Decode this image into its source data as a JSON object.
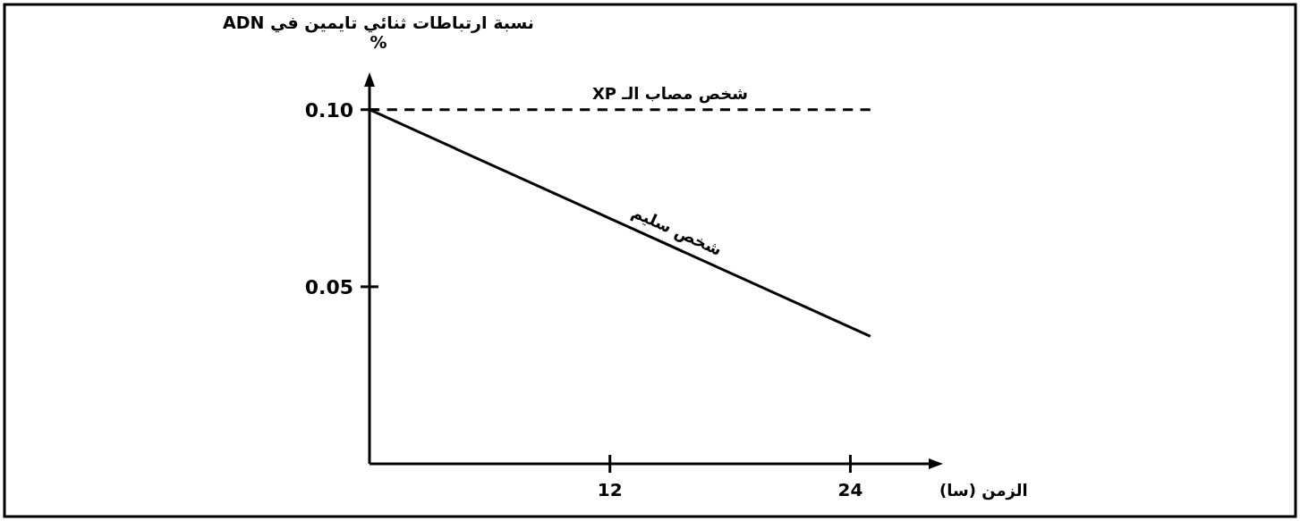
{
  "chart_data": {
    "type": "line",
    "ylabel": "نسبة ارتباطات ثنائي تايمين في ADN\n%",
    "xlabel": "الزمن (سا)",
    "x": [
      0,
      25
    ],
    "xlim": [
      0,
      28
    ],
    "ylim": [
      0,
      0.107
    ],
    "xticks": [
      12,
      24
    ],
    "yticks": [
      {
        "value": 0.05,
        "label": "0.05"
      },
      {
        "value": 0.1,
        "label": "0.10"
      }
    ],
    "grid": false,
    "marker": "none",
    "series": [
      {
        "name": "شخص مصاب الـ XP",
        "color": "#000000",
        "line_style": "dashed",
        "values": [
          0.1,
          0.1
        ]
      },
      {
        "name": "شخص سليم",
        "color": "#000000",
        "line_style": "solid",
        "values": [
          0.1,
          0.036
        ]
      }
    ]
  }
}
